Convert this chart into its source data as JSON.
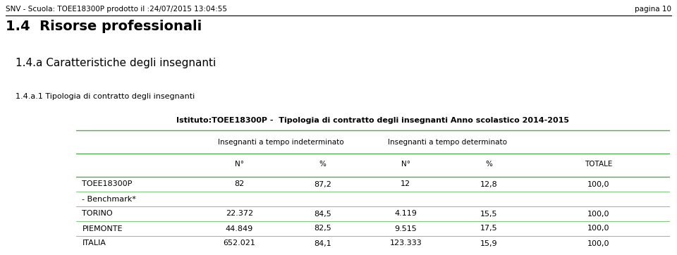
{
  "header_top": "SNV - Scuola: TOEE18300P prodotto il :24/07/2015 13:04:55",
  "header_right": "pagina 10",
  "title1": "1.4  Risorse professionali",
  "title2": "1.4.a Caratteristiche degli insegnanti",
  "title3": "1.4.a.1 Tipologia di contratto degli insegnanti",
  "table_title": "Istituto:TOEE18300P -  Tipologia di contratto degli insegnanti Anno scolastico 2014-2015",
  "col_header1": "Insegnanti a tempo indeterminato",
  "col_header2": "Insegnanti a tempo determinato",
  "col_sub": [
    "N°",
    "%",
    "N°",
    "%",
    "TOTALE"
  ],
  "rows": [
    {
      "label": "TOEE18300P",
      "v1": "82",
      "v2": "87,2",
      "v3": "12",
      "v4": "12,8",
      "v5": "100,0"
    },
    {
      "label": "- Benchmark*",
      "v1": "",
      "v2": "",
      "v3": "",
      "v4": "",
      "v5": ""
    },
    {
      "label": "TORINO",
      "v1": "22.372",
      "v2": "84,5",
      "v3": "4.119",
      "v4": "15,5",
      "v5": "100,0"
    },
    {
      "label": "PIEMONTE",
      "v1": "44.849",
      "v2": "82,5",
      "v3": "9.515",
      "v4": "17,5",
      "v5": "100,0"
    },
    {
      "label": "ITALIA",
      "v1": "652.021",
      "v2": "84,1",
      "v3": "123.333",
      "v4": "15,9",
      "v5": "100,0"
    }
  ],
  "bg_color": "#ffffff",
  "table_bg": "#d9f5d6",
  "table_border": "#4caf4c",
  "header_line_color": "#000000",
  "text_color": "#000000",
  "fig_width": 9.6,
  "fig_height": 3.62,
  "dpi": 100
}
